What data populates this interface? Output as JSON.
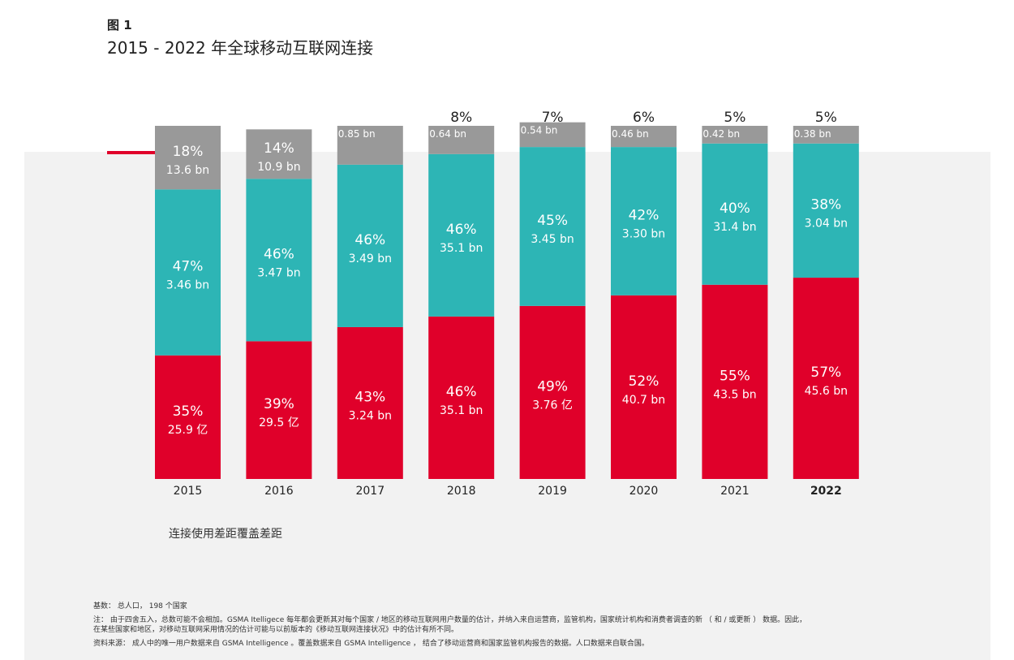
{
  "figure_label": "图 1",
  "title": "2015 - 2022 年全球移动互联网连接",
  "legend_text": "连接使用差距覆盖差距",
  "notes": {
    "base": "基数：  总人口，  198 个国家",
    "note_line1": "注：  由于四舍五入，总数可能不会相加。GSMA Itelligece 每年都会更新其对每个国家 / 地区的移动互联网用户数量的估计，并纳入来自运营商，监管机构，国家统计机构和消费者调查的新  （ 和 / 或更新 ）  数据。因此，",
    "note_line2": "在某些国家和地区，对移动互联网采用情况的估计可能与以前版本的《移动互联网连接状况》中的估计有所不同。",
    "source": "资料来源：  成人中的唯一用户数据来自 GSMA Intelligence 。覆盖数据来自 GSMA Intelligence ，  结合了移动运营商和国家监管机构报告的数据。人口数据来自联合国。"
  },
  "colors": {
    "connected": "#e0002a",
    "usage_gap": "#2db5b5",
    "coverage_gap": "#999999",
    "background": "#f2f2f2"
  },
  "chart_data": {
    "type": "bar",
    "stacked": true,
    "categories": [
      "2015",
      "2016",
      "2017",
      "2018",
      "2019",
      "2020",
      "2021",
      "2022"
    ],
    "highlight_category": "2022",
    "series": [
      {
        "key": "connected",
        "values": [
          35,
          39,
          43,
          46,
          49,
          52,
          55,
          57
        ],
        "pct_labels": [
          "35%",
          "39%",
          "43%",
          "46%",
          "49%",
          "52%",
          "55%",
          "57%"
        ],
        "value_labels": [
          "25.9 亿",
          "29.5 亿",
          "3.24 bn",
          "35.1 bn",
          "3.76 亿",
          "40.7 bn",
          "43.5 bn",
          "45.6 bn"
        ]
      },
      {
        "key": "usage_gap",
        "values": [
          47,
          46,
          46,
          46,
          45,
          42,
          40,
          38
        ],
        "pct_labels": [
          "47%",
          "46%",
          "46%",
          "46%",
          "45%",
          "42%",
          "40%",
          "38%"
        ],
        "value_labels": [
          "3.46 bn",
          "3.47 bn",
          "3.49 bn",
          "35.1 bn",
          "3.45 bn",
          "3.30 bn",
          "31.4 bn",
          "3.04 bn"
        ]
      },
      {
        "key": "coverage_gap",
        "values": [
          18,
          14,
          11,
          8,
          7,
          6,
          5,
          5
        ],
        "pct_labels": [
          "18%",
          "14%",
          "",
          "8%",
          "7%",
          "6%",
          "5%",
          "5%"
        ],
        "value_labels": [
          "13.6 bn",
          "10.9 bn",
          "0.85 bn",
          "0.64 bn",
          "0.54 bn",
          "0.46 bn",
          "0.42 bn",
          "0.38 bn"
        ]
      }
    ]
  }
}
